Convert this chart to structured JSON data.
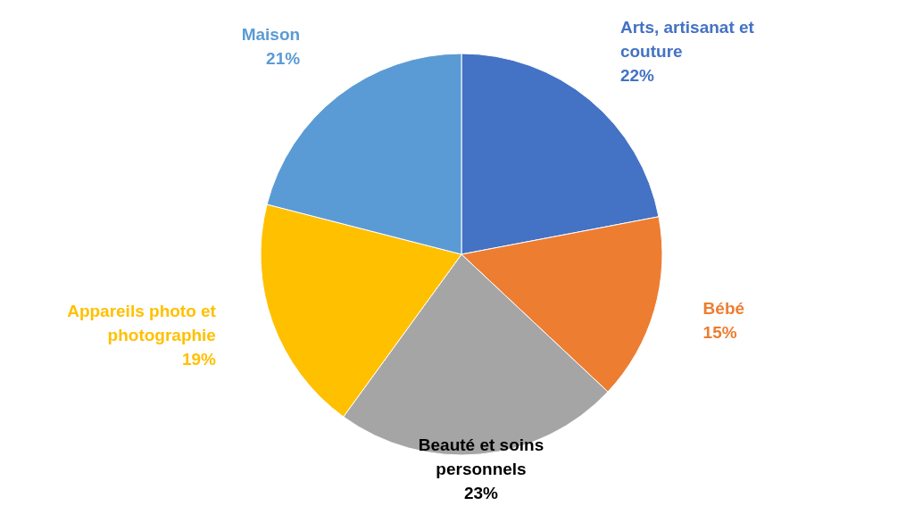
{
  "chart_data": {
    "type": "pie",
    "categories": [
      "Arts, artisanat et couture",
      "Bébé",
      "Beauté et soins personnels",
      "Appareils photo et photographie",
      "Maison"
    ],
    "values": [
      22,
      15,
      23,
      19,
      21
    ],
    "value_labels": [
      "22%",
      "15%",
      "23%",
      "19%",
      "21%"
    ],
    "colors": [
      "#4472c4",
      "#ed7d31",
      "#a5a5a5",
      "#ffc000",
      "#5b9bd5"
    ],
    "legend": false
  }
}
